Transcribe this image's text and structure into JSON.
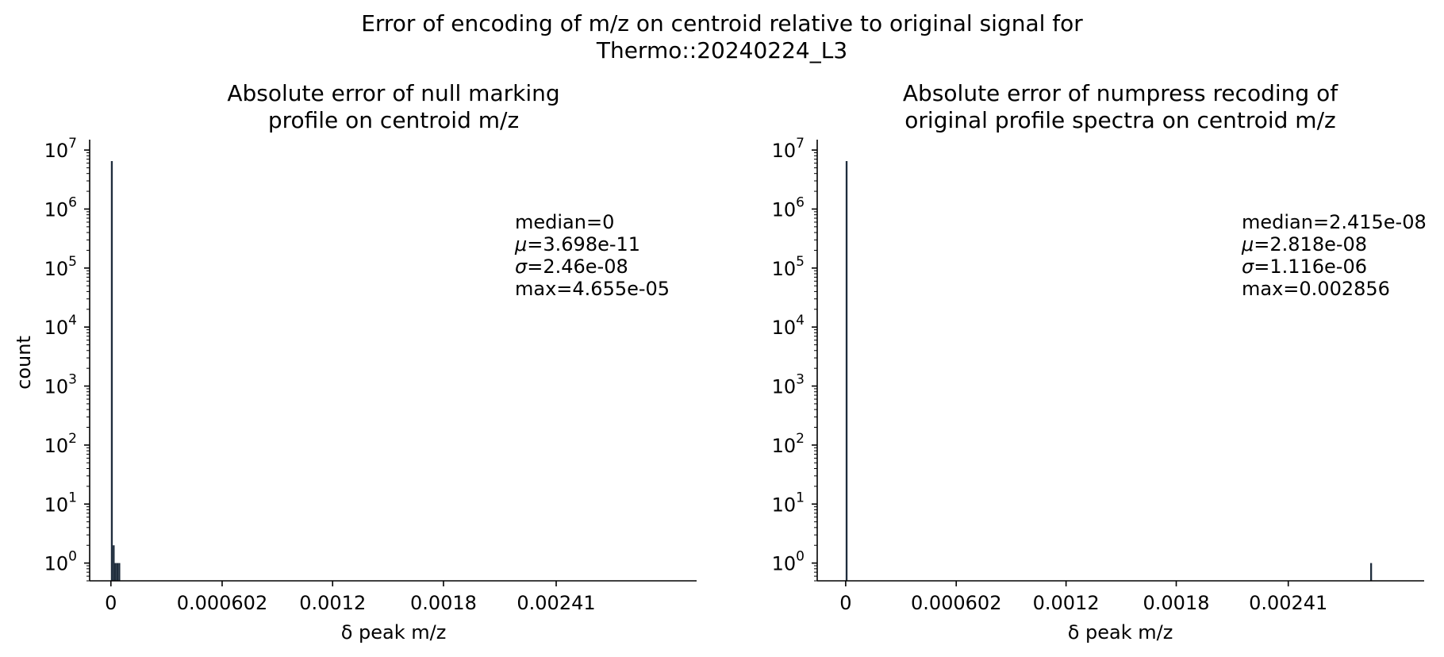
{
  "suptitle_line1": "Error of encoding of m/z on centroid relative to original signal for",
  "suptitle_line2": "Thermo::20240224_L3",
  "chart_data": [
    {
      "type": "bar",
      "title_line1": "Absolute error of null marking",
      "title_line2": "profile on centroid m/z",
      "xlabel": "δ peak m/z",
      "ylabel": "count",
      "yscale": "log",
      "ylim": [
        0.5,
        15000000
      ],
      "xlim": [
        -0.000115,
        0.00317
      ],
      "xticks": [
        {
          "value": 0,
          "label": "0"
        },
        {
          "value": 0.000602,
          "label": "0.000602"
        },
        {
          "value": 0.0012,
          "label": "0.0012"
        },
        {
          "value": 0.0018,
          "label": "0.0018"
        },
        {
          "value": 0.00241,
          "label": "0.00241"
        }
      ],
      "bar_width": 1.01e-05,
      "bars": [
        {
          "x": 0.0,
          "count": 6500000
        },
        {
          "x": 1.01e-05,
          "count": 2
        },
        {
          "x": 2.02e-05,
          "count": 1
        },
        {
          "x": 3.03e-05,
          "count": 1
        },
        {
          "x": 4.04e-05,
          "count": 1
        }
      ],
      "stats": [
        {
          "label": "median",
          "value": "0"
        },
        {
          "label": "μ",
          "value": "3.698e-11"
        },
        {
          "label": "σ",
          "value": "2.46e-08"
        },
        {
          "label": "max",
          "value": "4.655e-05"
        }
      ],
      "bar_color": "#1f2d3d"
    },
    {
      "type": "bar",
      "title_line1": "Absolute error of numpress recoding of",
      "title_line2": "original profile spectra on centroid m/z",
      "xlabel": "δ peak m/z",
      "ylabel": "",
      "yscale": "log",
      "ylim": [
        0.5,
        15000000
      ],
      "xlim": [
        -0.000155,
        0.00315
      ],
      "xticks": [
        {
          "value": 0,
          "label": "0"
        },
        {
          "value": 0.000602,
          "label": "0.000602"
        },
        {
          "value": 0.0012,
          "label": "0.0012"
        },
        {
          "value": 0.0018,
          "label": "0.0018"
        },
        {
          "value": 0.00241,
          "label": "0.00241"
        }
      ],
      "bar_width": 1.01e-05,
      "bars": [
        {
          "x": 0.0,
          "count": 6500000
        },
        {
          "x": 0.002856,
          "count": 1
        }
      ],
      "stats": [
        {
          "label": "median",
          "value": "2.415e-08"
        },
        {
          "label": "μ",
          "value": "2.818e-08"
        },
        {
          "label": "σ",
          "value": "1.116e-06"
        },
        {
          "label": "max",
          "value": "0.002856"
        }
      ],
      "bar_color": "#1f2d3d"
    }
  ]
}
